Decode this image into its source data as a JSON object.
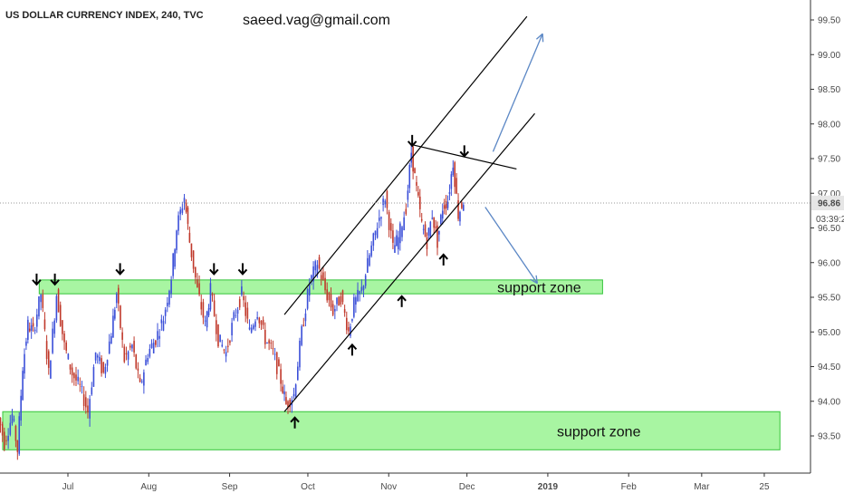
{
  "header": {
    "symbol_title": "US DOLLAR CURRENCY INDEX, 240, TVC",
    "author_note": "saeed.vag@gmail.com"
  },
  "chart_data": {
    "type": "candlestick",
    "title": "US DOLLAR CURRENCY INDEX, 240, TVC",
    "ylim": [
      93.1,
      99.6
    ],
    "y_ticks": [
      "99.50",
      "99.00",
      "98.50",
      "98.00",
      "97.50",
      "97.00",
      "96.50",
      "96.00",
      "95.50",
      "95.00",
      "94.50",
      "94.00",
      "93.50"
    ],
    "x_ticks": [
      "Jul",
      "Aug",
      "Sep",
      "Oct",
      "Nov",
      "Dec",
      "2019",
      "Feb",
      "Mar",
      "25"
    ],
    "grid": false,
    "last_price": "96.86",
    "countdown": "03:39:25",
    "price_path": [
      {
        "t": "2018-06-04",
        "v": 93.9
      },
      {
        "t": "2018-06-07",
        "v": 93.4
      },
      {
        "t": "2018-06-10",
        "v": 93.8
      },
      {
        "t": "2018-06-12",
        "v": 93.3
      },
      {
        "t": "2018-06-14",
        "v": 94.5
      },
      {
        "t": "2018-06-16",
        "v": 95.1
      },
      {
        "t": "2018-06-18",
        "v": 95.0
      },
      {
        "t": "2018-06-21",
        "v": 95.55
      },
      {
        "t": "2018-06-24",
        "v": 94.4
      },
      {
        "t": "2018-06-27",
        "v": 95.55
      },
      {
        "t": "2018-06-30",
        "v": 94.8
      },
      {
        "t": "2018-07-03",
        "v": 94.4
      },
      {
        "t": "2018-07-06",
        "v": 94.2
      },
      {
        "t": "2018-07-09",
        "v": 93.85
      },
      {
        "t": "2018-07-12",
        "v": 94.7
      },
      {
        "t": "2018-07-15",
        "v": 94.4
      },
      {
        "t": "2018-07-18",
        "v": 95.0
      },
      {
        "t": "2018-07-20",
        "v": 95.55
      },
      {
        "t": "2018-07-23",
        "v": 94.6
      },
      {
        "t": "2018-07-26",
        "v": 94.8
      },
      {
        "t": "2018-07-29",
        "v": 94.2
      },
      {
        "t": "2018-08-01",
        "v": 94.7
      },
      {
        "t": "2018-08-04",
        "v": 94.9
      },
      {
        "t": "2018-08-07",
        "v": 95.2
      },
      {
        "t": "2018-08-10",
        "v": 95.8
      },
      {
        "t": "2018-08-12",
        "v": 96.5
      },
      {
        "t": "2018-08-15",
        "v": 96.95
      },
      {
        "t": "2018-08-17",
        "v": 96.3
      },
      {
        "t": "2018-08-20",
        "v": 95.6
      },
      {
        "t": "2018-08-23",
        "v": 95.1
      },
      {
        "t": "2018-08-25",
        "v": 95.6
      },
      {
        "t": "2018-08-28",
        "v": 94.9
      },
      {
        "t": "2018-08-31",
        "v": 94.7
      },
      {
        "t": "2018-09-03",
        "v": 95.2
      },
      {
        "t": "2018-09-06",
        "v": 95.55
      },
      {
        "t": "2018-09-09",
        "v": 95.0
      },
      {
        "t": "2018-09-12",
        "v": 95.3
      },
      {
        "t": "2018-09-15",
        "v": 94.9
      },
      {
        "t": "2018-09-18",
        "v": 94.7
      },
      {
        "t": "2018-09-21",
        "v": 94.3
      },
      {
        "t": "2018-09-23",
        "v": 93.95
      },
      {
        "t": "2018-09-26",
        "v": 94.1
      },
      {
        "t": "2018-09-29",
        "v": 95.0
      },
      {
        "t": "2018-10-02",
        "v": 95.7
      },
      {
        "t": "2018-10-05",
        "v": 96.0
      },
      {
        "t": "2018-10-08",
        "v": 95.6
      },
      {
        "t": "2018-10-11",
        "v": 95.3
      },
      {
        "t": "2018-10-14",
        "v": 95.5
      },
      {
        "t": "2018-10-17",
        "v": 95.0
      },
      {
        "t": "2018-10-19",
        "v": 95.4
      },
      {
        "t": "2018-10-22",
        "v": 95.6
      },
      {
        "t": "2018-10-25",
        "v": 96.1
      },
      {
        "t": "2018-10-28",
        "v": 96.55
      },
      {
        "t": "2018-10-31",
        "v": 96.95
      },
      {
        "t": "2018-11-03",
        "v": 96.2
      },
      {
        "t": "2018-11-05",
        "v": 96.35
      },
      {
        "t": "2018-11-08",
        "v": 96.8
      },
      {
        "t": "2018-11-10",
        "v": 97.6
      },
      {
        "t": "2018-11-12",
        "v": 97.05
      },
      {
        "t": "2018-11-14",
        "v": 96.55
      },
      {
        "t": "2018-11-16",
        "v": 96.3
      },
      {
        "t": "2018-11-18",
        "v": 96.7
      },
      {
        "t": "2018-11-20",
        "v": 96.3
      },
      {
        "t": "2018-11-22",
        "v": 96.8
      },
      {
        "t": "2018-11-24",
        "v": 96.9
      },
      {
        "t": "2018-11-26",
        "v": 97.45
      },
      {
        "t": "2018-11-28",
        "v": 96.7
      },
      {
        "t": "2018-11-30",
        "v": 96.9
      }
    ],
    "support_zones": [
      {
        "label": "support zone",
        "top": 95.75,
        "bottom": 95.55,
        "from": "2018-06-20",
        "to": "2019-01-22"
      },
      {
        "label": "support zone",
        "top": 93.85,
        "bottom": 93.3,
        "from": "2018-06-06",
        "to": "2019-03-31"
      }
    ],
    "trend_lines": [
      {
        "name": "channel-upper",
        "from": {
          "t": "2018-09-22",
          "v": 95.25
        },
        "to": {
          "t": "2018-12-24",
          "v": 99.55
        }
      },
      {
        "name": "channel-lower",
        "from": {
          "t": "2018-09-22",
          "v": 93.85
        },
        "to": {
          "t": "2018-12-27",
          "v": 98.15
        }
      },
      {
        "name": "triangle-top",
        "from": {
          "t": "2018-11-10",
          "v": 97.7
        },
        "to": {
          "t": "2018-12-20",
          "v": 97.35
        }
      }
    ],
    "projection_arrows": [
      {
        "name": "bullish-projection",
        "from": {
          "t": "2018-12-11",
          "v": 97.6
        },
        "to": {
          "t": "2018-12-30",
          "v": 99.3
        },
        "color": "#5b87c5"
      },
      {
        "name": "bearish-projection",
        "from": {
          "t": "2018-12-08",
          "v": 96.8
        },
        "to": {
          "t": "2018-12-28",
          "v": 95.7
        },
        "color": "#5b87c5"
      }
    ],
    "markers": [
      {
        "dir": "down",
        "t": "2018-06-19",
        "v": 95.75
      },
      {
        "dir": "down",
        "t": "2018-06-26",
        "v": 95.75
      },
      {
        "dir": "down",
        "t": "2018-07-21",
        "v": 95.9
      },
      {
        "dir": "down",
        "t": "2018-08-26",
        "v": 95.9
      },
      {
        "dir": "down",
        "t": "2018-09-06",
        "v": 95.9
      },
      {
        "dir": "up",
        "t": "2018-09-26",
        "v": 93.7
      },
      {
        "dir": "up",
        "t": "2018-10-18",
        "v": 94.75
      },
      {
        "dir": "up",
        "t": "2018-11-06",
        "v": 95.45
      },
      {
        "dir": "up",
        "t": "2018-11-22",
        "v": 96.05
      },
      {
        "dir": "down",
        "t": "2018-11-10",
        "v": 97.75
      },
      {
        "dir": "down",
        "t": "2018-11-30",
        "v": 97.6
      }
    ],
    "colors": {
      "candle_up": "#3b4fd8",
      "candle_down": "#c0392b",
      "zone_fill": "#a8f5a2",
      "zone_stroke": "#35c43a",
      "line": "#000000",
      "projection": "#5b87c5",
      "last_price_bg": "#e6e6e6",
      "dotted_line": "#9a9a9a"
    }
  }
}
